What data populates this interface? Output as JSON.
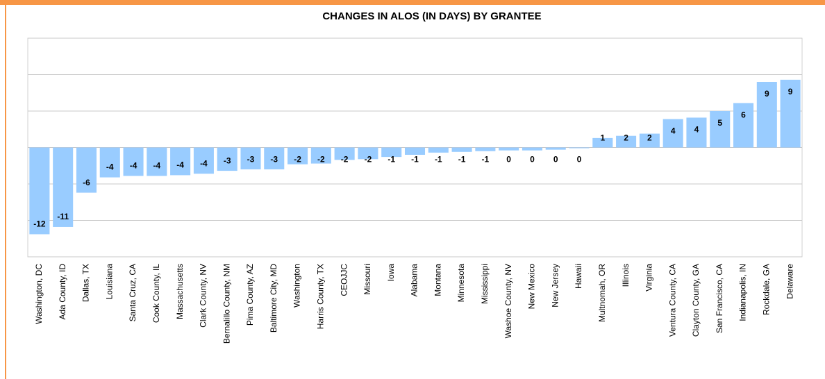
{
  "chart_data": {
    "type": "bar",
    "title": "CHANGES IN ALOS (IN DAYS) BY GRANTEE",
    "categories": [
      "Washington, DC",
      "Ada County, ID",
      "Dallas, TX",
      "Louisiana",
      "Santa Cruz, CA",
      "Cook County, IL",
      "Massachusetts",
      "Clark County, NV",
      "Bernalillo County, NM",
      "Pima County, AZ",
      "Baltimore City, MD",
      "Washington",
      "Harris County, TX",
      "CEOJJC",
      "Missouri",
      "Iowa",
      "Alabama",
      "Montana",
      "Minnesota",
      "Mississippi",
      "Washoe County, NV",
      "New Mexico",
      "New Jersey",
      "Hawaii",
      "Multnomah, OR",
      "Illinois",
      "Virginia",
      "Ventura County, CA",
      "Clayton County, GA",
      "San Francisco, CA",
      "Indianapolis, IN",
      "Rockdale, GA",
      "Delaware"
    ],
    "values": [
      -11.9,
      -10.9,
      -6.2,
      -4.1,
      -3.9,
      -3.9,
      -3.8,
      -3.6,
      -3.2,
      -3.0,
      -3.0,
      -2.3,
      -2.2,
      -1.7,
      -1.6,
      -1.3,
      -1.0,
      -0.7,
      -0.6,
      -0.5,
      -0.4,
      -0.4,
      -0.3,
      -0.1,
      1.3,
      1.6,
      1.9,
      3.9,
      4.1,
      5.0,
      6.1,
      9.0,
      9.3
    ],
    "value_labels": [
      "-12",
      "-11",
      "-6",
      "-4",
      "-4",
      "-4",
      "-4",
      "-4",
      "-3",
      "-3",
      "-3",
      "-2",
      "-2",
      "-2",
      "-2",
      "-1",
      "-1",
      "-1",
      "-1",
      "-1",
      "0",
      "0",
      "0",
      "0",
      "1",
      "2",
      "2",
      "4",
      "4",
      "5",
      "6",
      "9",
      "9"
    ],
    "color": "#99ccff",
    "ylim": [
      -15,
      15
    ],
    "ygrid": [
      -15,
      -10,
      -5,
      0,
      5,
      10,
      15
    ],
    "grid": true
  }
}
